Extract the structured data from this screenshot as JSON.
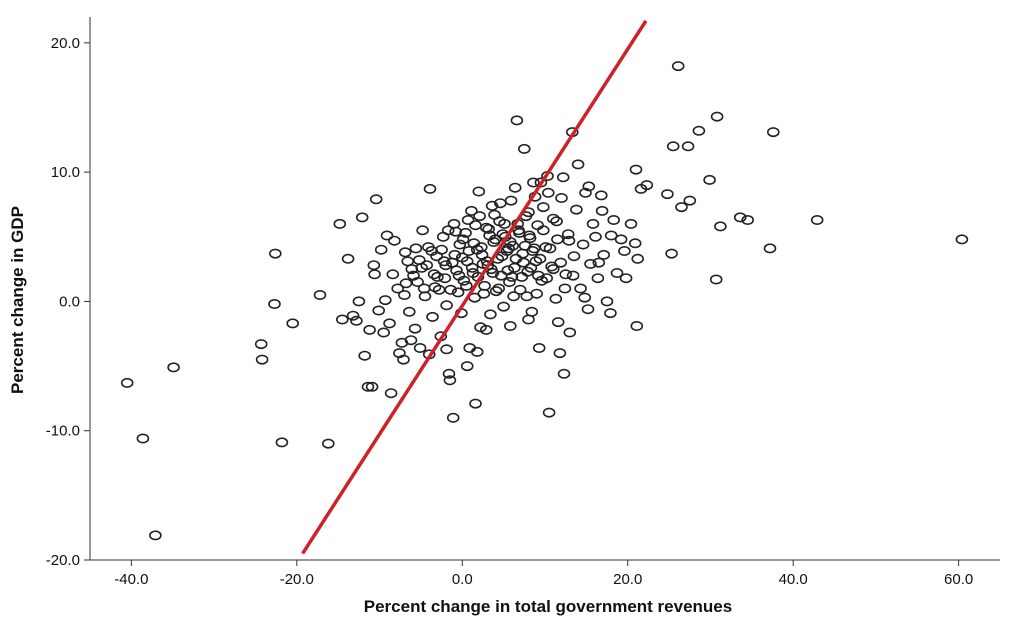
{
  "chart_data": {
    "type": "scatter",
    "title": "",
    "xlabel": "Percent change in total government revenues",
    "ylabel": "Percent change in GDP",
    "xlim": [
      -45,
      65
    ],
    "ylim": [
      -20,
      22
    ],
    "x_ticks": [
      -40,
      -20,
      0,
      20,
      40,
      60
    ],
    "y_ticks": [
      -20,
      -10,
      0,
      10,
      20
    ],
    "x_tick_labels": [
      "-40.0",
      "-20.0",
      "0.0",
      "20.0",
      "40.0",
      "60.0"
    ],
    "y_tick_labels": [
      "-20.0",
      "-10.0",
      "0.0",
      "10.0",
      "20.0"
    ],
    "grid": false,
    "colors": {
      "points": "#222222",
      "fit_line": "#cc2229"
    },
    "fit_line": {
      "name": "",
      "x": [
        -19.3,
        22.2
      ],
      "y": [
        -19.5,
        21.7
      ]
    },
    "series": [
      {
        "name": "",
        "points": [
          [
            -40.5,
            -6.3
          ],
          [
            -38.6,
            -10.6
          ],
          [
            -37.1,
            -18.1
          ],
          [
            -34.9,
            -5.1
          ],
          [
            -24.3,
            -3.3
          ],
          [
            -24.2,
            -4.5
          ],
          [
            -22.6,
            3.7
          ],
          [
            -22.7,
            -0.2
          ],
          [
            -21.8,
            -10.9
          ],
          [
            -20.5,
            -1.7
          ],
          [
            -17.2,
            0.5
          ],
          [
            -16.2,
            -11.0
          ],
          [
            -14.8,
            6.0
          ],
          [
            -14.5,
            -1.4
          ],
          [
            -13.8,
            3.3
          ],
          [
            -13.2,
            -1.1
          ],
          [
            -12.5,
            0.0
          ],
          [
            -12.1,
            6.5
          ],
          [
            -11.8,
            -4.2
          ],
          [
            -11.4,
            -6.6
          ],
          [
            -10.9,
            -6.6
          ],
          [
            -10.7,
            2.8
          ],
          [
            -10.4,
            7.9
          ],
          [
            -10.1,
            -0.7
          ],
          [
            -9.8,
            4.0
          ],
          [
            -9.5,
            -2.4
          ],
          [
            -9.1,
            5.1
          ],
          [
            -8.8,
            -1.7
          ],
          [
            -8.6,
            -7.1
          ],
          [
            -8.2,
            4.7
          ],
          [
            -7.8,
            1.0
          ],
          [
            -7.6,
            -4.0
          ],
          [
            -7.3,
            -3.2
          ],
          [
            -7.0,
            0.5
          ],
          [
            -6.6,
            3.1
          ],
          [
            -6.4,
            -0.8
          ],
          [
            -6.1,
            2.5
          ],
          [
            -5.7,
            -2.1
          ],
          [
            -5.4,
            1.5
          ],
          [
            -5.1,
            -3.6
          ],
          [
            -4.8,
            5.5
          ],
          [
            -4.5,
            0.4
          ],
          [
            -4.1,
            4.2
          ],
          [
            -3.9,
            8.7
          ],
          [
            -3.6,
            -1.2
          ],
          [
            -3.4,
            2.1
          ],
          [
            -3.1,
            3.5
          ],
          [
            -2.8,
            0.9
          ],
          [
            -2.6,
            -2.7
          ],
          [
            -2.3,
            5.0
          ],
          [
            -2.1,
            1.8
          ],
          [
            -1.9,
            -0.3
          ],
          [
            -1.6,
            -5.6
          ],
          [
            -1.5,
            -6.1
          ],
          [
            -1.2,
            3.0
          ],
          [
            -1.0,
            6.0
          ],
          [
            -0.7,
            2.4
          ],
          [
            -0.5,
            0.7
          ],
          [
            -0.3,
            4.4
          ],
          [
            -0.1,
            -0.9
          ],
          [
            0.2,
            1.6
          ],
          [
            0.4,
            5.3
          ],
          [
            0.6,
            3.1
          ],
          [
            0.9,
            -3.6
          ],
          [
            1.1,
            7.0
          ],
          [
            1.3,
            2.2
          ],
          [
            1.5,
            0.3
          ],
          [
            1.8,
            4.0
          ],
          [
            2.0,
            8.5
          ],
          [
            2.2,
            -2.0
          ],
          [
            2.4,
            3.6
          ],
          [
            2.7,
            1.2
          ],
          [
            2.9,
            5.7
          ],
          [
            3.1,
            2.8
          ],
          [
            3.4,
            -1.0
          ],
          [
            3.6,
            7.4
          ],
          [
            3.8,
            4.6
          ],
          [
            4.1,
            0.8
          ],
          [
            4.3,
            3.3
          ],
          [
            4.5,
            6.2
          ],
          [
            4.7,
            2.0
          ],
          [
            5.0,
            -0.4
          ],
          [
            5.2,
            5.0
          ],
          [
            5.4,
            3.9
          ],
          [
            5.7,
            1.5
          ],
          [
            5.9,
            7.8
          ],
          [
            6.1,
            4.3
          ],
          [
            6.3,
            2.6
          ],
          [
            6.6,
            14.0
          ],
          [
            6.8,
            5.5
          ],
          [
            7.0,
            0.9
          ],
          [
            7.3,
            3.7
          ],
          [
            7.5,
            11.8
          ],
          [
            7.7,
            6.6
          ],
          [
            7.9,
            2.3
          ],
          [
            8.2,
            4.9
          ],
          [
            8.4,
            -0.8
          ],
          [
            8.6,
            9.2
          ],
          [
            8.9,
            3.1
          ],
          [
            9.1,
            5.9
          ],
          [
            9.3,
            -3.6
          ],
          [
            9.6,
            1.6
          ],
          [
            9.8,
            7.3
          ],
          [
            10.1,
            4.2
          ],
          [
            10.3,
            9.7
          ],
          [
            10.5,
            -8.6
          ],
          [
            10.8,
            2.7
          ],
          [
            11.0,
            6.4
          ],
          [
            11.3,
            0.2
          ],
          [
            11.5,
            4.8
          ],
          [
            11.8,
            -4.0
          ],
          [
            12.0,
            8.0
          ],
          [
            12.3,
            -5.6
          ],
          [
            12.5,
            2.1
          ],
          [
            12.8,
            5.2
          ],
          [
            13.0,
            -2.4
          ],
          [
            13.3,
            13.1
          ],
          [
            13.5,
            3.5
          ],
          [
            13.8,
            7.1
          ],
          [
            14.0,
            10.6
          ],
          [
            14.3,
            1.0
          ],
          [
            14.6,
            4.4
          ],
          [
            14.9,
            8.4
          ],
          [
            15.2,
            -0.6
          ],
          [
            15.5,
            2.9
          ],
          [
            15.8,
            6.0
          ],
          [
            16.1,
            5.0
          ],
          [
            16.4,
            1.8
          ],
          [
            16.8,
            8.2
          ],
          [
            17.1,
            3.6
          ],
          [
            17.5,
            0.0
          ],
          [
            17.9,
            -0.9
          ],
          [
            18.3,
            6.3
          ],
          [
            18.7,
            2.2
          ],
          [
            19.2,
            4.8
          ],
          [
            19.8,
            1.8
          ],
          [
            20.4,
            6.0
          ],
          [
            21.0,
            10.2
          ],
          [
            21.1,
            -1.9
          ],
          [
            21.2,
            3.3
          ],
          [
            21.6,
            8.7
          ],
          [
            22.3,
            9.0
          ],
          [
            24.8,
            8.3
          ],
          [
            25.3,
            3.7
          ],
          [
            25.5,
            12.0
          ],
          [
            26.1,
            18.2
          ],
          [
            26.5,
            7.3
          ],
          [
            27.3,
            12.0
          ],
          [
            27.5,
            7.8
          ],
          [
            28.6,
            13.2
          ],
          [
            29.9,
            9.4
          ],
          [
            30.8,
            14.3
          ],
          [
            30.7,
            1.7
          ],
          [
            31.2,
            5.8
          ],
          [
            33.6,
            6.5
          ],
          [
            34.5,
            6.3
          ],
          [
            37.2,
            4.1
          ],
          [
            37.6,
            13.1
          ],
          [
            42.9,
            6.3
          ],
          [
            60.4,
            4.8
          ],
          [
            -3.0,
            1.9
          ],
          [
            -2.5,
            4.0
          ],
          [
            -2.0,
            2.8
          ],
          [
            -1.4,
            0.9
          ],
          [
            -0.9,
            3.6
          ],
          [
            -0.4,
            2.0
          ],
          [
            0.1,
            4.8
          ],
          [
            0.5,
            1.2
          ],
          [
            0.8,
            3.9
          ],
          [
            1.2,
            2.6
          ],
          [
            1.6,
            5.9
          ],
          [
            1.9,
            1.9
          ],
          [
            2.3,
            4.2
          ],
          [
            2.6,
            0.6
          ],
          [
            3.0,
            3.1
          ],
          [
            3.3,
            5.1
          ],
          [
            3.7,
            2.2
          ],
          [
            4.0,
            4.8
          ],
          [
            4.4,
            1.0
          ],
          [
            4.8,
            3.5
          ],
          [
            5.1,
            6.0
          ],
          [
            5.5,
            2.4
          ],
          [
            5.8,
            4.6
          ],
          [
            6.2,
            0.4
          ],
          [
            6.5,
            3.3
          ],
          [
            6.9,
            5.3
          ],
          [
            7.2,
            1.9
          ],
          [
            7.6,
            4.3
          ],
          [
            8.0,
            6.9
          ],
          [
            8.3,
            2.6
          ],
          [
            8.7,
            4.1
          ],
          [
            9.0,
            0.6
          ],
          [
            9.4,
            3.3
          ],
          [
            9.8,
            5.5
          ],
          [
            10.2,
            1.8
          ],
          [
            10.6,
            4.1
          ],
          [
            11.0,
            2.5
          ],
          [
            11.4,
            6.2
          ],
          [
            11.9,
            3.0
          ],
          [
            12.4,
            1.0
          ],
          [
            12.9,
            4.7
          ],
          [
            13.4,
            2.0
          ],
          [
            -6.9,
            3.8
          ],
          [
            -5.9,
            2.0
          ],
          [
            -5.2,
            3.2
          ],
          [
            -4.6,
            1.0
          ],
          [
            -4.3,
            2.8
          ],
          [
            -3.7,
            3.9
          ],
          [
            -8.4,
            2.1
          ],
          [
            -9.3,
            0.1
          ],
          [
            -10.6,
            2.1
          ],
          [
            -11.2,
            -2.2
          ],
          [
            -12.8,
            -1.5
          ],
          [
            -6.2,
            -3.0
          ],
          [
            -7.1,
            -4.5
          ],
          [
            -4.0,
            -4.1
          ],
          [
            -1.9,
            -3.7
          ],
          [
            0.6,
            -5.0
          ],
          [
            1.8,
            -3.9
          ],
          [
            2.9,
            -2.2
          ],
          [
            -1.1,
            -9.0
          ],
          [
            1.6,
            -7.9
          ],
          [
            5.8,
            -1.9
          ],
          [
            8.0,
            -1.4
          ],
          [
            11.6,
            -1.6
          ],
          [
            14.8,
            0.3
          ],
          [
            16.5,
            3.0
          ],
          [
            18.0,
            5.1
          ],
          [
            19.6,
            3.9
          ],
          [
            20.9,
            4.5
          ],
          [
            15.3,
            8.9
          ],
          [
            16.9,
            7.0
          ],
          [
            6.4,
            8.8
          ],
          [
            8.8,
            8.1
          ],
          [
            4.6,
            7.6
          ],
          [
            9.5,
            9.2
          ],
          [
            10.4,
            8.4
          ],
          [
            12.2,
            9.6
          ],
          [
            3.2,
            5.6
          ],
          [
            4.9,
            5.2
          ],
          [
            6.7,
            6.0
          ],
          [
            7.4,
            3.0
          ],
          [
            8.1,
            5.1
          ],
          [
            9.2,
            2.0
          ],
          [
            2.1,
            6.6
          ],
          [
            3.5,
            2.5
          ],
          [
            5.6,
            4.1
          ],
          [
            6.0,
            1.9
          ],
          [
            7.8,
            0.4
          ],
          [
            8.5,
            3.9
          ],
          [
            -0.8,
            5.4
          ],
          [
            0.0,
            3.4
          ],
          [
            0.7,
            6.3
          ],
          [
            1.4,
            4.5
          ],
          [
            2.5,
            2.9
          ],
          [
            3.9,
            6.7
          ],
          [
            -2.2,
            3.1
          ],
          [
            -1.7,
            5.5
          ],
          [
            -3.3,
            1.1
          ],
          [
            -4.9,
            2.6
          ],
          [
            -5.6,
            4.1
          ],
          [
            -6.8,
            1.4
          ]
        ]
      }
    ]
  }
}
